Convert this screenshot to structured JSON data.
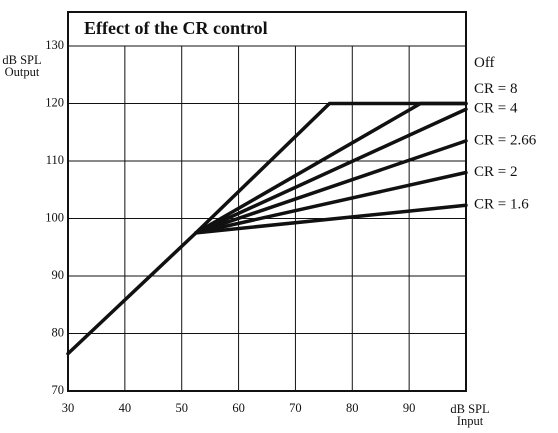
{
  "chart_data": {
    "type": "line",
    "title": "Effect of the CR control",
    "ylabel": [
      "dB SPL",
      "Output"
    ],
    "xlabel": [
      "dB SPL",
      "Input"
    ],
    "xlim": [
      30,
      100
    ],
    "xticks": [
      30,
      40,
      50,
      60,
      70,
      80,
      90
    ],
    "ylim": [
      70,
      130
    ],
    "yticks": [
      70,
      80,
      90,
      100,
      110,
      120,
      130
    ],
    "grid": true,
    "series": [
      {
        "name": "Off",
        "color": "#111111",
        "x": [
          30,
          52.5,
          76,
          100
        ],
        "values": [
          76.5,
          97.5,
          120,
          120
        ]
      },
      {
        "name": "CR = 8",
        "color": "#111111",
        "x": [
          52.5,
          92,
          100
        ],
        "values": [
          97.5,
          120,
          120
        ]
      },
      {
        "name": "CR = 4",
        "color": "#111111",
        "x": [
          52.5,
          100
        ],
        "values": [
          97.5,
          119
        ]
      },
      {
        "name": "CR = 2.66",
        "color": "#111111",
        "x": [
          52.5,
          100
        ],
        "values": [
          97.5,
          113.5
        ]
      },
      {
        "name": "CR = 2",
        "color": "#111111",
        "x": [
          52.5,
          100
        ],
        "values": [
          97.5,
          108
        ]
      },
      {
        "name": "CR = 1.6",
        "color": "#111111",
        "x": [
          52.5,
          100
        ],
        "values": [
          97.5,
          102.3
        ]
      }
    ]
  }
}
